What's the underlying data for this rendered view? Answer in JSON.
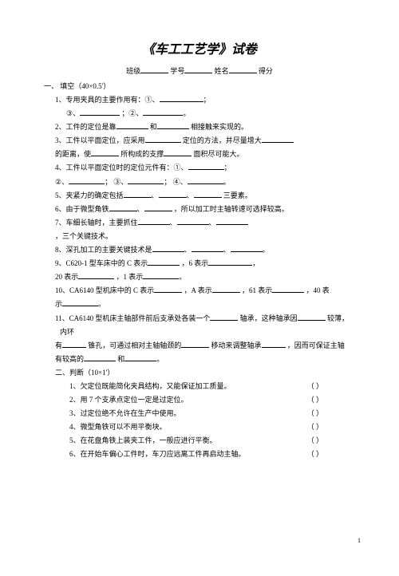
{
  "title": "《车工工艺学》试卷",
  "header": {
    "class_label": "班级",
    "number_label": "学号",
    "name_label": "姓名",
    "score_label": "得分"
  },
  "section1": {
    "heading": "一、 填空（40×0.5'）",
    "q1": {
      "stem": "1、专用夹具的主要作用有：①、",
      "cont": "③、",
      "mid": "；②、"
    },
    "q2": {
      "pre": "2、工件的定位是靠",
      "mid": "和",
      "post": "相接触来实现的。"
    },
    "q3": {
      "pre": "3、工件以平面定位，应采用",
      "post": "定位的方法，并尽量增大"
    },
    "q3b": {
      "pre": "的距离，使",
      "mid": "所构成的支撑",
      "post": "面积尽可能大。"
    },
    "q4": {
      "stem": "4、工件以平面定位时的定位元件有：①、",
      "cont1": "②、",
      "cont2": "③、",
      "cont3": "④、"
    },
    "q5": {
      "pre": "5、夹紧力的确定包括",
      "post": "三要素。"
    },
    "q6": {
      "pre": "6、由于微型角铁",
      "post": "，所以加工时主轴转速可选择较高。"
    },
    "q7": {
      "pre": "7、车细长轴时，主要抓住",
      "post": "，三个关键技术。"
    },
    "q8": {
      "pre": "8、深孔加工的主要关键技术是"
    },
    "q9": {
      "pre": "9、C620-1 型车床中的 C 表示",
      "mid": "，6 表示",
      "post": "，1 表示"
    },
    "q10": {
      "pre": "10、CA6140 型机床中的 C 表示",
      "mid1": "，A 表示",
      "mid2": "，61 表示",
      "post": "，40 表",
      "cont": "示"
    },
    "q11": {
      "pre": "11、CA6140 型机床主轴部件前后支承处各装一个",
      "mid1": "轴承，这种轴承因",
      "post1": "较薄，内环",
      "pre2": "有",
      "mid2": "锥孔，可通过相对主轴轴颈的",
      "post2": "移动来调整轴承",
      "end2": "，因而可保证主轴",
      "pre3": "有较高的",
      "mid3": "和"
    }
  },
  "section2": {
    "heading": "二、判断（10×1'）",
    "items": [
      "1、欠定位既能简化夹具结构，又能保证加工质量。",
      "2、用 7 个支承点定位一定是过定位。",
      "3、过定位绝不允许在生产中使用。",
      "4、微型角铁可以不用平衡块。",
      "5、在花盘角铁上装夹工件，一般应进行平衡。",
      "6、在开始车偏心工件时，车刀应远离工件再启动主轴。"
    ],
    "paren": "（     ）"
  },
  "page_num": "1"
}
